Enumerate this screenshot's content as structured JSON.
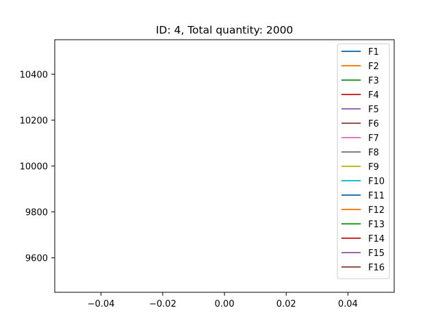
{
  "chart_data": {
    "type": "line",
    "title": "ID: 4, Total quantity: 2000",
    "xlabel": "",
    "ylabel": "",
    "xlim": [
      -0.055,
      0.055
    ],
    "ylim": [
      9450,
      10550
    ],
    "x_ticks": [
      {
        "value": -0.04,
        "label": "−0.04"
      },
      {
        "value": -0.02,
        "label": "−0.02"
      },
      {
        "value": 0.0,
        "label": "0.00"
      },
      {
        "value": 0.02,
        "label": "0.02"
      },
      {
        "value": 0.04,
        "label": "0.04"
      }
    ],
    "y_ticks": [
      {
        "value": 9600,
        "label": "9600"
      },
      {
        "value": 9800,
        "label": "9800"
      },
      {
        "value": 10000,
        "label": "10000"
      },
      {
        "value": 10200,
        "label": "10200"
      },
      {
        "value": 10400,
        "label": "10400"
      }
    ],
    "grid": false,
    "legend_position": "upper-right",
    "series": [
      {
        "name": "F1",
        "color": "#1f77b4",
        "values": []
      },
      {
        "name": "F2",
        "color": "#ff7f0e",
        "values": []
      },
      {
        "name": "F3",
        "color": "#2ca02c",
        "values": []
      },
      {
        "name": "F4",
        "color": "#d62728",
        "values": []
      },
      {
        "name": "F5",
        "color": "#9467bd",
        "values": []
      },
      {
        "name": "F6",
        "color": "#8c564b",
        "values": []
      },
      {
        "name": "F7",
        "color": "#e377c2",
        "values": []
      },
      {
        "name": "F8",
        "color": "#7f7f7f",
        "values": []
      },
      {
        "name": "F9",
        "color": "#bcbd22",
        "values": []
      },
      {
        "name": "F10",
        "color": "#17becf",
        "values": []
      },
      {
        "name": "F11",
        "color": "#1f77b4",
        "values": []
      },
      {
        "name": "F12",
        "color": "#ff7f0e",
        "values": []
      },
      {
        "name": "F13",
        "color": "#2ca02c",
        "values": []
      },
      {
        "name": "F14",
        "color": "#d62728",
        "values": []
      },
      {
        "name": "F15",
        "color": "#9467bd",
        "values": []
      },
      {
        "name": "F16",
        "color": "#8c564b",
        "values": []
      }
    ]
  }
}
